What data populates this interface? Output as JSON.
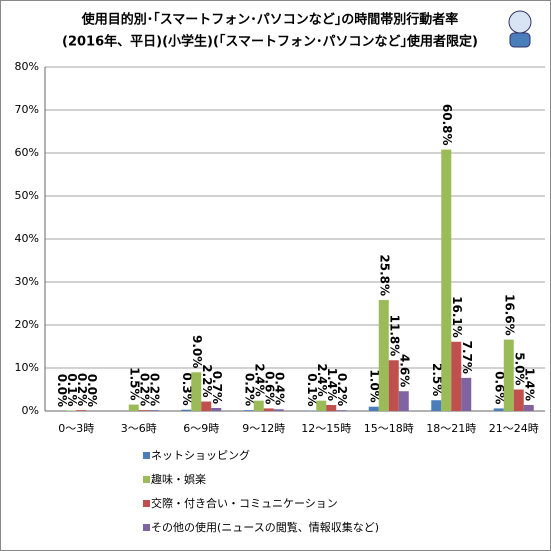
{
  "chart_data": {
    "type": "bar",
    "title": "使用目的別･｢スマートフォン･パソコンなど｣の時間帯別行動者率",
    "subtitle": "(2016年、平日)(小学生)(｢スマートフォン･パソコンなど｣使用者限定)",
    "categories": [
      "0～3時",
      "3～6時",
      "6～9時",
      "9～12時",
      "12～15時",
      "15～18時",
      "18～21時",
      "21～24時"
    ],
    "series": [
      {
        "name": "ネットショッピング",
        "color": "#4a7ebb",
        "values": [
          0.0,
          null,
          0.3,
          0.2,
          0.1,
          1.0,
          2.5,
          0.6
        ],
        "value_labels": [
          "0.0%",
          null,
          "0.3%",
          "0.2%",
          "0.1%",
          "1.0%",
          "2.5%",
          "0.6%"
        ]
      },
      {
        "name": "趣味・娯楽",
        "color": "#9bbb59",
        "values": [
          0.1,
          1.5,
          9.0,
          2.4,
          2.4,
          25.8,
          60.8,
          16.6
        ],
        "value_labels": [
          "0.1%",
          "1.5%",
          "9.0%",
          "2.4%",
          "2.4%",
          "25.8%",
          "60.8%",
          "16.6%"
        ]
      },
      {
        "name": "交際・付き合い・コミュニケーション",
        "color": "#c0504d",
        "values": [
          0.2,
          0.2,
          2.2,
          0.6,
          1.4,
          11.8,
          16.1,
          5.0
        ],
        "value_labels": [
          "0.2%",
          "0.2%",
          "2.2%",
          "0.6%",
          "1.4%",
          "11.8%",
          "16.1%",
          "5.0%"
        ]
      },
      {
        "name": "その他の使用(ニュースの閲覧、情報収集など)",
        "color": "#8064a2",
        "values": [
          0.0,
          0.2,
          0.7,
          0.4,
          0.2,
          4.6,
          7.7,
          1.4
        ],
        "value_labels": [
          "0.0%",
          "0.2%",
          "0.7%",
          "0.4%",
          "0.2%",
          "4.6%",
          "7.7%",
          "1.4%"
        ]
      }
    ],
    "ylim": [
      0,
      80
    ],
    "yticks": [
      {
        "value": 0,
        "label": "0%"
      },
      {
        "value": 10,
        "label": "10%"
      },
      {
        "value": 20,
        "label": "20%"
      },
      {
        "value": 30,
        "label": "30%"
      },
      {
        "value": 40,
        "label": "40%"
      },
      {
        "value": 50,
        "label": "50%"
      },
      {
        "value": 60,
        "label": "60%"
      },
      {
        "value": 70,
        "label": "70%"
      },
      {
        "value": 80,
        "label": "80%"
      }
    ],
    "grid": true
  }
}
